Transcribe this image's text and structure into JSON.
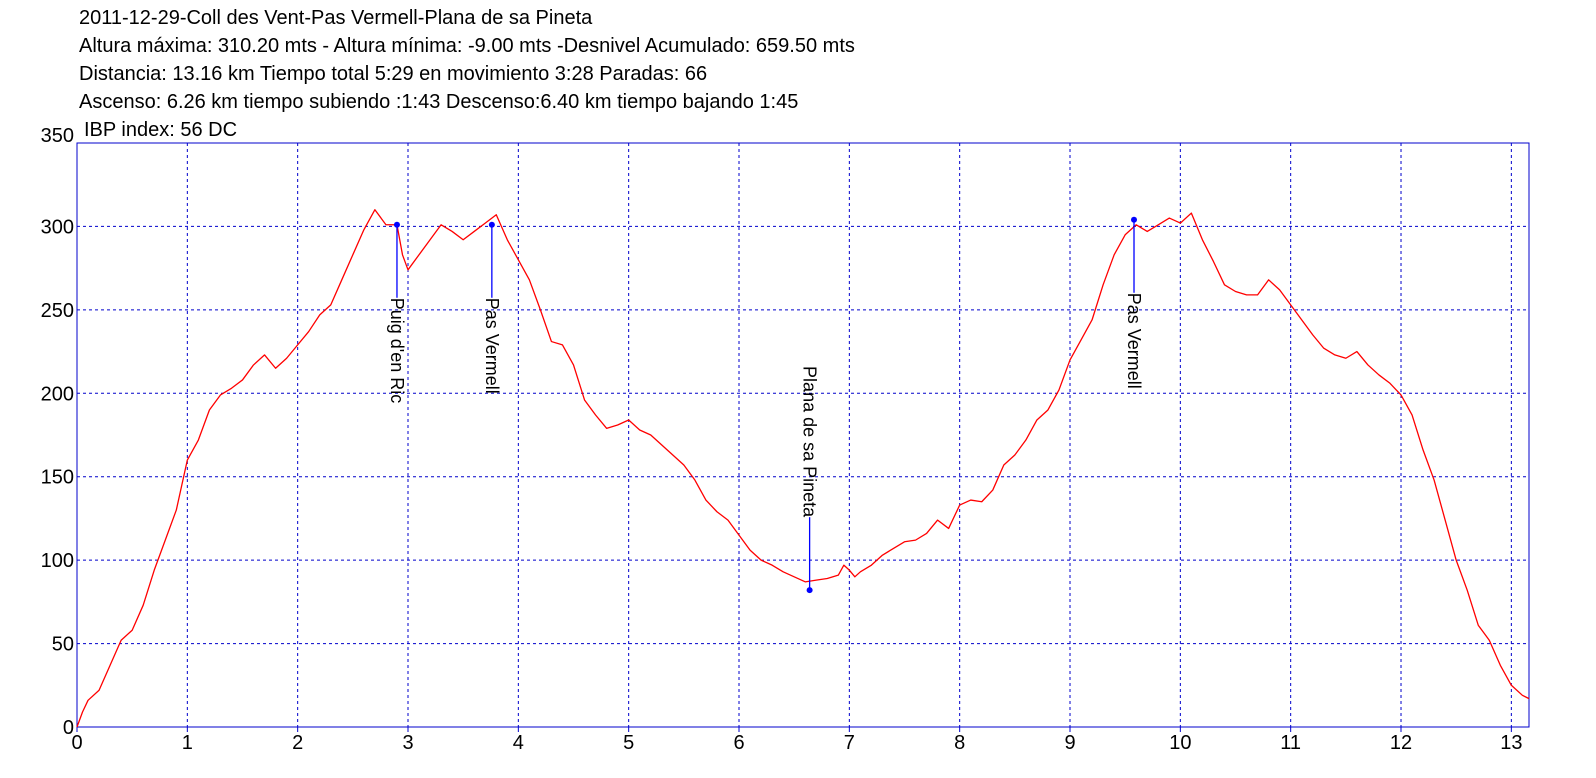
{
  "chart_data": {
    "type": "line",
    "title": "2011-12-29-Coll des Vent-Pas Vermell-Plana de sa Pineta",
    "info_lines": [
      "Altura máxima: 310.20 mts - Altura mínima: -9.00 mts -Desnivel Acumulado: 659.50 mts",
      "Distancia: 13.16 km  Tiempo total 5:29  en movimiento 3:28 Paradas: 66",
      "Ascenso: 6.26 km  tiempo subiendo :1:43  Descenso:6.40 km tiempo bajando 1:45",
      "IBP index: 56 DC"
    ],
    "x": [
      0,
      0.05,
      0.1,
      0.2,
      0.3,
      0.4,
      0.5,
      0.6,
      0.7,
      0.8,
      0.9,
      1.0,
      1.1,
      1.2,
      1.3,
      1.4,
      1.5,
      1.6,
      1.7,
      1.8,
      1.9,
      2.0,
      2.1,
      2.2,
      2.3,
      2.4,
      2.5,
      2.6,
      2.7,
      2.8,
      2.9,
      2.95,
      3.0,
      3.1,
      3.2,
      3.3,
      3.4,
      3.5,
      3.6,
      3.7,
      3.8,
      3.9,
      4.0,
      4.1,
      4.2,
      4.3,
      4.4,
      4.5,
      4.6,
      4.7,
      4.8,
      4.9,
      5.0,
      5.1,
      5.2,
      5.3,
      5.4,
      5.5,
      5.6,
      5.7,
      5.8,
      5.9,
      6.0,
      6.1,
      6.2,
      6.3,
      6.4,
      6.5,
      6.6,
      6.7,
      6.8,
      6.9,
      6.95,
      7.0,
      7.05,
      7.1,
      7.2,
      7.3,
      7.4,
      7.5,
      7.6,
      7.7,
      7.8,
      7.9,
      8.0,
      8.1,
      8.2,
      8.3,
      8.4,
      8.5,
      8.6,
      8.7,
      8.8,
      8.9,
      9.0,
      9.1,
      9.2,
      9.3,
      9.4,
      9.5,
      9.6,
      9.7,
      9.8,
      9.9,
      10.0,
      10.1,
      10.2,
      10.3,
      10.4,
      10.5,
      10.6,
      10.7,
      10.8,
      10.9,
      11.0,
      11.1,
      11.2,
      11.3,
      11.4,
      11.5,
      11.6,
      11.7,
      11.8,
      11.9,
      12.0,
      12.1,
      12.2,
      12.3,
      12.4,
      12.5,
      12.6,
      12.7,
      12.8,
      12.9,
      13.0,
      13.1,
      13.16
    ],
    "series": [
      {
        "color": "#ff0000",
        "values": [
          0,
          9,
          16,
          22,
          37,
          52,
          58,
          73,
          94,
          112,
          130,
          160,
          172,
          190,
          199,
          203,
          208,
          217,
          223,
          215,
          221,
          229,
          237,
          247,
          253,
          268,
          283,
          298,
          310,
          301,
          301,
          283,
          274,
          283,
          292,
          301,
          297,
          292,
          297,
          302,
          307,
          292,
          280,
          268,
          250,
          231,
          229,
          217,
          196,
          187,
          179,
          181,
          184,
          178,
          175,
          169,
          163,
          157,
          148,
          136,
          129,
          124,
          115,
          106,
          100,
          97,
          93,
          90,
          87,
          88,
          89,
          91,
          97,
          94,
          90,
          93,
          97,
          103,
          107,
          111,
          112,
          116,
          124,
          119,
          133,
          136,
          135,
          142,
          157,
          163,
          172,
          184,
          190,
          202,
          220,
          232,
          244,
          265,
          283,
          295,
          301,
          297,
          301,
          305,
          302,
          308,
          292,
          279,
          265,
          261,
          259,
          259,
          268,
          262,
          253,
          244,
          235,
          227,
          223,
          221,
          225,
          217,
          211,
          206,
          199,
          187,
          166,
          148,
          124,
          100,
          82,
          61,
          52,
          37,
          25,
          19,
          17
        ]
      }
    ],
    "waypoints": [
      {
        "x": 2.9,
        "y": 301,
        "label": "Puig d'en Ric"
      },
      {
        "x": 3.76,
        "y": 301,
        "label": "Pas Vermell"
      },
      {
        "x": 6.64,
        "y": 82,
        "label": "Plana de sa Pineta"
      },
      {
        "x": 9.58,
        "y": 304,
        "label": "Pas Vermell"
      }
    ],
    "waypoint_color": "#0000ff",
    "xlim": [
      0,
      13.16
    ],
    "ylim": [
      0,
      350
    ],
    "xticks": [
      0,
      1,
      2,
      3,
      4,
      5,
      6,
      7,
      8,
      9,
      10,
      11,
      12,
      13
    ],
    "yticks": [
      0,
      50,
      100,
      150,
      200,
      250,
      300,
      350
    ],
    "grid": true,
    "grid_color": "#0000cc"
  }
}
